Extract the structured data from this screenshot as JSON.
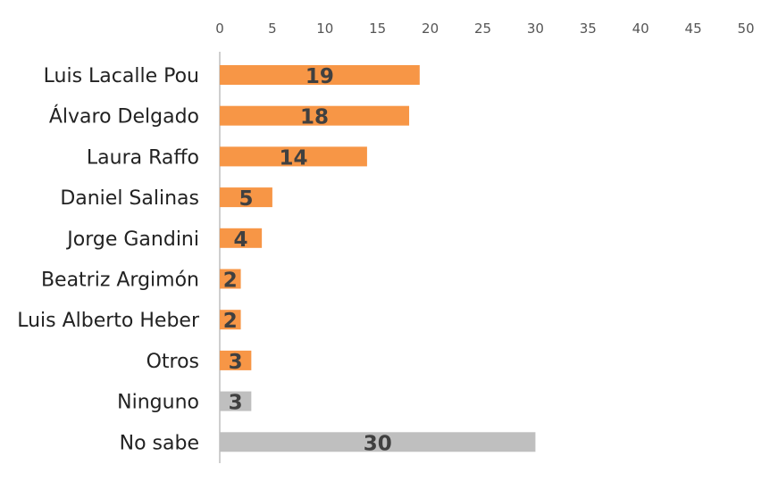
{
  "chart_data": {
    "type": "bar",
    "orientation": "horizontal",
    "categories": [
      "Luis Lacalle Pou",
      "Álvaro Delgado",
      "Laura Raffo",
      "Daniel Salinas",
      "Jorge Gandini",
      "Beatriz Argimón",
      "Luis Alberto Heber",
      "Otros",
      "Ninguno",
      "No sabe"
    ],
    "values": [
      19,
      18,
      14,
      5,
      4,
      2,
      2,
      3,
      3,
      30
    ],
    "data_labels": [
      "19",
      "18",
      "14",
      "5",
      "4",
      "2",
      "2",
      "3",
      "3",
      "30"
    ],
    "bar_colors": [
      "#f79646",
      "#f79646",
      "#f79646",
      "#f79646",
      "#f79646",
      "#f79646",
      "#f79646",
      "#f79646",
      "#bfbfbf",
      "#bfbfbf"
    ],
    "xlim": [
      0,
      50
    ],
    "x_ticks": [
      0,
      5,
      10,
      15,
      20,
      25,
      30,
      35,
      40,
      45,
      50
    ],
    "x_axis_position": "top",
    "grid": false,
    "title": "",
    "xlabel": "",
    "ylabel": ""
  },
  "colors": {
    "primary_bar": "#f79646",
    "neutral_bar": "#bfbfbf",
    "axis_line": "#bfbfbf",
    "data_label": "#404040"
  }
}
